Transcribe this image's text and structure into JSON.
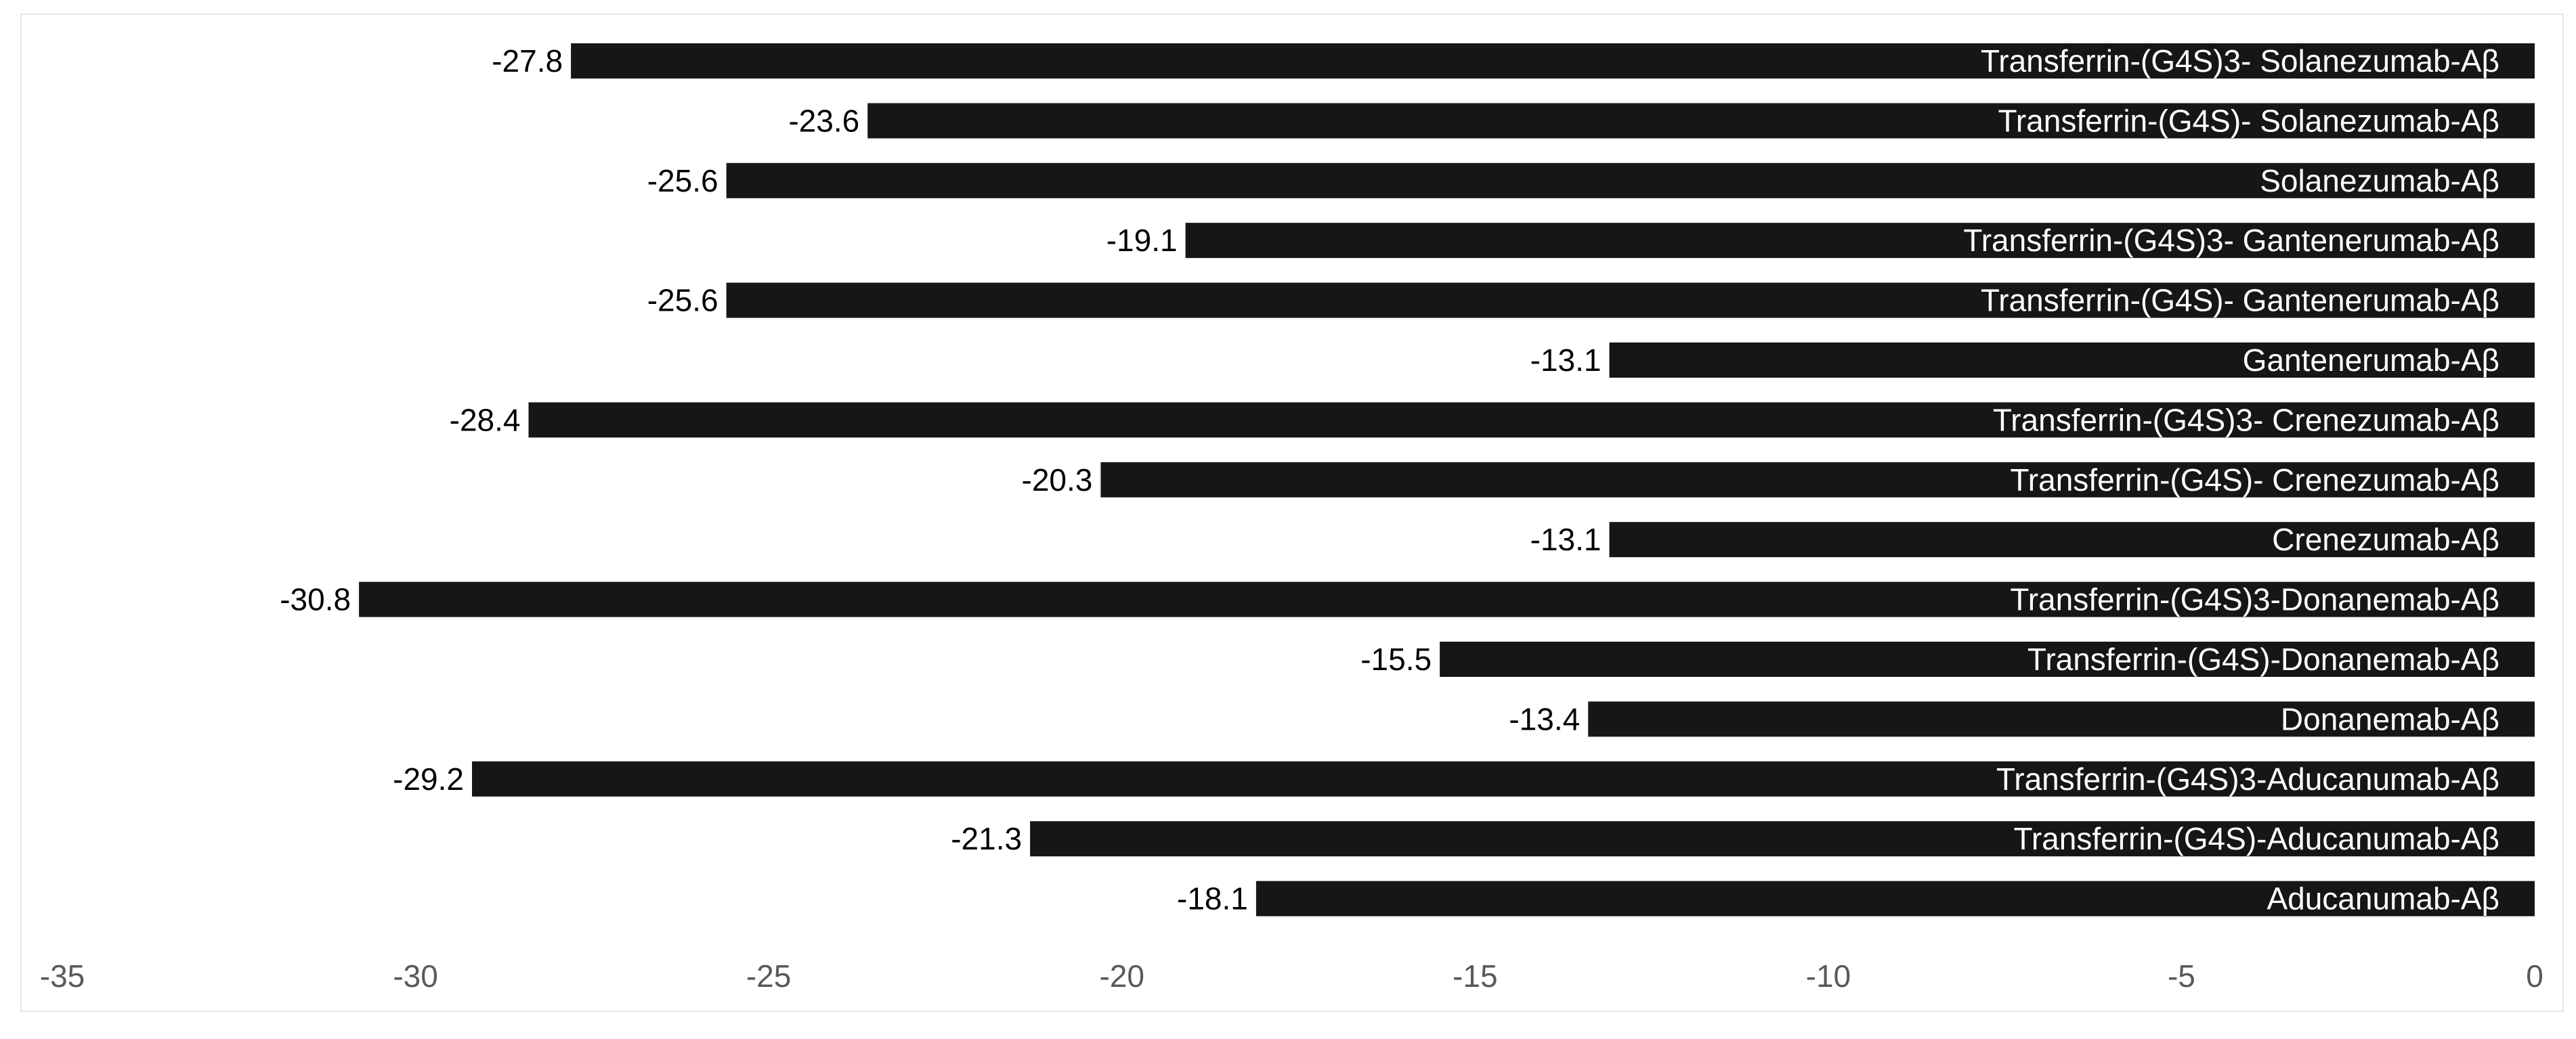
{
  "chart_data": {
    "type": "bar",
    "orientation": "horizontal",
    "categories": [
      "Transferrin-(G4S)3- Solanezumab-Aβ",
      "Transferrin-(G4S)- Solanezumab-Aβ",
      "Solanezumab-Aβ",
      "Transferrin-(G4S)3- Gantenerumab-Aβ",
      "Transferrin-(G4S)- Gantenerumab-Aβ",
      "Gantenerumab-Aβ",
      "Transferrin-(G4S)3- Crenezumab-Aβ",
      "Transferrin-(G4S)- Crenezumab-Aβ",
      "Crenezumab-Aβ",
      "Transferrin-(G4S)3-Donanemab-Aβ",
      "Transferrin-(G4S)-Donanemab-Aβ",
      "Donanemab-Aβ",
      "Transferrin-(G4S)3-Aducanumab-Aβ",
      "Transferrin-(G4S)-Aducanumab-Aβ",
      "Aducanumab-Aβ"
    ],
    "values": [
      -27.8,
      -23.6,
      -25.6,
      -19.1,
      -25.6,
      -13.1,
      -28.4,
      -20.3,
      -13.1,
      -30.8,
      -15.5,
      -13.4,
      -29.2,
      -21.3,
      -18.1
    ],
    "value_labels": [
      "-27.8",
      "-23.6",
      "-25.6",
      "-19.1",
      "-25.6",
      "-13.1",
      "-28.4",
      "-20.3",
      "-13.1",
      "-30.8",
      "-15.5",
      "-13.4",
      "-29.2",
      "-21.3",
      "-18.1"
    ],
    "xlim": [
      -35,
      0
    ],
    "x_ticks": [
      -35,
      -30,
      -25,
      -20,
      -15,
      -10,
      -5,
      0
    ],
    "x_tick_labels": [
      "-35",
      "-30",
      "-25",
      "-20",
      "-15",
      "-10",
      "-5",
      "0"
    ],
    "title": "",
    "xlabel": "",
    "ylabel": "",
    "grid": false,
    "legend": "none",
    "bar_color": "#161616",
    "bar_label_color": "#ffffff",
    "value_label_color": "#000000",
    "tick_label_color": "#595959"
  }
}
